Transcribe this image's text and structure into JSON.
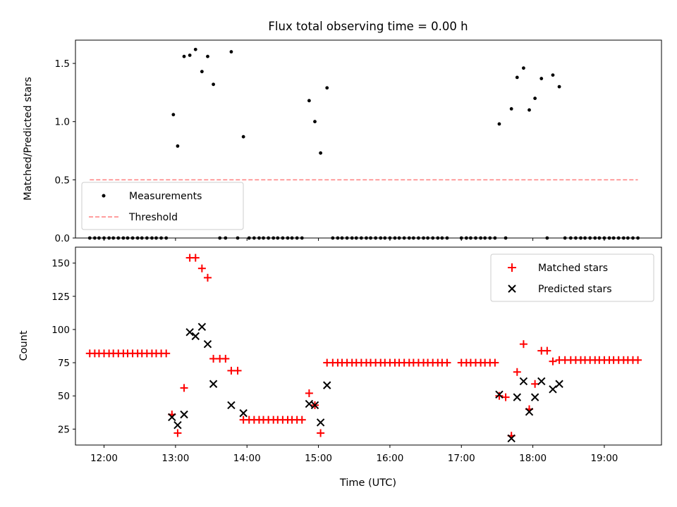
{
  "chart_data": [
    {
      "type": "scatter",
      "title": "Flux total observing time = 0.00 h",
      "ylabel": "Matched/Predicted stars",
      "xlabel": "",
      "xlim": [
        11.6,
        19.8
      ],
      "ylim": [
        0.0,
        1.7
      ],
      "yticks": [
        0.0,
        0.5,
        1.0,
        1.5
      ],
      "ytick_labels": [
        "0.0",
        "0.5",
        "1.0",
        "1.5"
      ],
      "legend_position": "bottom-left",
      "threshold": {
        "value": 0.5,
        "x_start": 11.8,
        "x_end": 19.47,
        "color": "#ff7f7f"
      },
      "series": [
        {
          "name": "Measurements",
          "marker": "dot",
          "color": "#000000",
          "points": [
            [
              11.8,
              0
            ],
            [
              11.87,
              0
            ],
            [
              11.93,
              0
            ],
            [
              12.0,
              0
            ],
            [
              12.07,
              0
            ],
            [
              12.13,
              0
            ],
            [
              12.2,
              0
            ],
            [
              12.27,
              0
            ],
            [
              12.33,
              0
            ],
            [
              12.4,
              0
            ],
            [
              12.47,
              0
            ],
            [
              12.53,
              0
            ],
            [
              12.6,
              0
            ],
            [
              12.67,
              0
            ],
            [
              12.73,
              0
            ],
            [
              12.8,
              0
            ],
            [
              12.87,
              0
            ],
            [
              12.97,
              1.06
            ],
            [
              13.03,
              0.79
            ],
            [
              13.12,
              1.56
            ],
            [
              13.2,
              1.57
            ],
            [
              13.28,
              1.62
            ],
            [
              13.37,
              1.43
            ],
            [
              13.45,
              1.56
            ],
            [
              13.53,
              1.32
            ],
            [
              13.62,
              0
            ],
            [
              13.7,
              0
            ],
            [
              13.78,
              1.6
            ],
            [
              13.87,
              0
            ],
            [
              13.95,
              0.87
            ],
            [
              14.03,
              0
            ],
            [
              14.1,
              0
            ],
            [
              14.17,
              0
            ],
            [
              14.23,
              0
            ],
            [
              14.3,
              0
            ],
            [
              14.37,
              0
            ],
            [
              14.43,
              0
            ],
            [
              14.5,
              0
            ],
            [
              14.57,
              0
            ],
            [
              14.63,
              0
            ],
            [
              14.7,
              0
            ],
            [
              14.77,
              0
            ],
            [
              14.87,
              1.18
            ],
            [
              14.95,
              1.0
            ],
            [
              15.03,
              0.73
            ],
            [
              15.12,
              1.29
            ],
            [
              15.2,
              0
            ],
            [
              15.27,
              0
            ],
            [
              15.33,
              0
            ],
            [
              15.4,
              0
            ],
            [
              15.47,
              0
            ],
            [
              15.53,
              0
            ],
            [
              15.6,
              0
            ],
            [
              15.67,
              0
            ],
            [
              15.73,
              0
            ],
            [
              15.8,
              0
            ],
            [
              15.87,
              0
            ],
            [
              15.93,
              0
            ],
            [
              16.0,
              0
            ],
            [
              16.07,
              0
            ],
            [
              16.13,
              0
            ],
            [
              16.2,
              0
            ],
            [
              16.27,
              0
            ],
            [
              16.33,
              0
            ],
            [
              16.4,
              0
            ],
            [
              16.47,
              0
            ],
            [
              16.53,
              0
            ],
            [
              16.6,
              0
            ],
            [
              16.67,
              0
            ],
            [
              16.73,
              0
            ],
            [
              16.8,
              0
            ],
            [
              17.0,
              0
            ],
            [
              17.07,
              0
            ],
            [
              17.13,
              0
            ],
            [
              17.2,
              0
            ],
            [
              17.27,
              0
            ],
            [
              17.33,
              0
            ],
            [
              17.4,
              0
            ],
            [
              17.47,
              0
            ],
            [
              17.53,
              0.98
            ],
            [
              17.62,
              0
            ],
            [
              17.7,
              1.11
            ],
            [
              17.78,
              1.38
            ],
            [
              17.87,
              1.46
            ],
            [
              17.95,
              1.1
            ],
            [
              18.03,
              1.2
            ],
            [
              18.12,
              1.37
            ],
            [
              18.2,
              0
            ],
            [
              18.28,
              1.4
            ],
            [
              18.37,
              1.3
            ],
            [
              18.45,
              0
            ],
            [
              18.53,
              0
            ],
            [
              18.6,
              0
            ],
            [
              18.67,
              0
            ],
            [
              18.73,
              0
            ],
            [
              18.8,
              0
            ],
            [
              18.87,
              0
            ],
            [
              18.93,
              0
            ],
            [
              19.0,
              0
            ],
            [
              19.07,
              0
            ],
            [
              19.13,
              0
            ],
            [
              19.2,
              0
            ],
            [
              19.27,
              0
            ],
            [
              19.33,
              0
            ],
            [
              19.4,
              0
            ],
            [
              19.47,
              0
            ]
          ]
        }
      ],
      "legend": [
        {
          "name": "Measurements",
          "marker": "dot",
          "color": "#000000"
        },
        {
          "name": "Threshold",
          "marker": "dashed-line",
          "color": "#ff7f7f"
        }
      ]
    },
    {
      "type": "scatter",
      "title": "",
      "ylabel": "Count",
      "xlabel": "Time (UTC)",
      "xlim": [
        11.6,
        19.8
      ],
      "ylim": [
        13,
        162
      ],
      "xticks": [
        12,
        13,
        14,
        15,
        16,
        17,
        18,
        19
      ],
      "xtick_labels": [
        "12:00",
        "13:00",
        "14:00",
        "15:00",
        "16:00",
        "17:00",
        "18:00",
        "19:00"
      ],
      "yticks": [
        25,
        50,
        75,
        100,
        125,
        150
      ],
      "ytick_labels": [
        "25",
        "50",
        "75",
        "100",
        "125",
        "150"
      ],
      "legend_position": "top-right",
      "series": [
        {
          "name": "Matched stars",
          "marker": "plus",
          "color": "#ff0000",
          "points": [
            [
              11.8,
              82
            ],
            [
              11.87,
              82
            ],
            [
              11.93,
              82
            ],
            [
              12.0,
              82
            ],
            [
              12.07,
              82
            ],
            [
              12.13,
              82
            ],
            [
              12.2,
              82
            ],
            [
              12.27,
              82
            ],
            [
              12.33,
              82
            ],
            [
              12.4,
              82
            ],
            [
              12.47,
              82
            ],
            [
              12.53,
              82
            ],
            [
              12.6,
              82
            ],
            [
              12.67,
              82
            ],
            [
              12.73,
              82
            ],
            [
              12.8,
              82
            ],
            [
              12.87,
              82
            ],
            [
              12.95,
              36
            ],
            [
              13.03,
              22
            ],
            [
              13.12,
              56
            ],
            [
              13.2,
              154
            ],
            [
              13.28,
              154
            ],
            [
              13.37,
              146
            ],
            [
              13.45,
              139
            ],
            [
              13.53,
              78
            ],
            [
              13.62,
              78
            ],
            [
              13.7,
              78
            ],
            [
              13.78,
              69
            ],
            [
              13.87,
              69
            ],
            [
              13.95,
              32
            ],
            [
              14.03,
              32
            ],
            [
              14.1,
              32
            ],
            [
              14.17,
              32
            ],
            [
              14.23,
              32
            ],
            [
              14.3,
              32
            ],
            [
              14.37,
              32
            ],
            [
              14.43,
              32
            ],
            [
              14.5,
              32
            ],
            [
              14.57,
              32
            ],
            [
              14.63,
              32
            ],
            [
              14.7,
              32
            ],
            [
              14.77,
              32
            ],
            [
              14.87,
              52
            ],
            [
              14.95,
              43
            ],
            [
              15.03,
              22
            ],
            [
              15.12,
              75
            ],
            [
              15.2,
              75
            ],
            [
              15.27,
              75
            ],
            [
              15.33,
              75
            ],
            [
              15.4,
              75
            ],
            [
              15.47,
              75
            ],
            [
              15.53,
              75
            ],
            [
              15.6,
              75
            ],
            [
              15.67,
              75
            ],
            [
              15.73,
              75
            ],
            [
              15.8,
              75
            ],
            [
              15.87,
              75
            ],
            [
              15.93,
              75
            ],
            [
              16.0,
              75
            ],
            [
              16.07,
              75
            ],
            [
              16.13,
              75
            ],
            [
              16.2,
              75
            ],
            [
              16.27,
              75
            ],
            [
              16.33,
              75
            ],
            [
              16.4,
              75
            ],
            [
              16.47,
              75
            ],
            [
              16.53,
              75
            ],
            [
              16.6,
              75
            ],
            [
              16.67,
              75
            ],
            [
              16.73,
              75
            ],
            [
              16.8,
              75
            ],
            [
              17.0,
              75
            ],
            [
              17.07,
              75
            ],
            [
              17.13,
              75
            ],
            [
              17.2,
              75
            ],
            [
              17.27,
              75
            ],
            [
              17.33,
              75
            ],
            [
              17.4,
              75
            ],
            [
              17.47,
              75
            ],
            [
              17.53,
              50
            ],
            [
              17.62,
              49
            ],
            [
              17.7,
              20
            ],
            [
              17.78,
              68
            ],
            [
              17.87,
              89
            ],
            [
              17.95,
              40
            ],
            [
              18.03,
              59
            ],
            [
              18.12,
              84
            ],
            [
              18.2,
              84
            ],
            [
              18.28,
              76
            ],
            [
              18.37,
              77
            ],
            [
              18.45,
              77
            ],
            [
              18.53,
              77
            ],
            [
              18.6,
              77
            ],
            [
              18.67,
              77
            ],
            [
              18.73,
              77
            ],
            [
              18.8,
              77
            ],
            [
              18.87,
              77
            ],
            [
              18.93,
              77
            ],
            [
              19.0,
              77
            ],
            [
              19.07,
              77
            ],
            [
              19.13,
              77
            ],
            [
              19.2,
              77
            ],
            [
              19.27,
              77
            ],
            [
              19.33,
              77
            ],
            [
              19.4,
              77
            ],
            [
              19.47,
              77
            ]
          ]
        },
        {
          "name": "Predicted stars",
          "marker": "x",
          "color": "#000000",
          "points": [
            [
              12.95,
              34
            ],
            [
              13.03,
              28
            ],
            [
              13.12,
              36
            ],
            [
              13.2,
              98
            ],
            [
              13.28,
              95
            ],
            [
              13.37,
              102
            ],
            [
              13.45,
              89
            ],
            [
              13.53,
              59
            ],
            [
              13.78,
              43
            ],
            [
              13.95,
              37
            ],
            [
              14.87,
              44
            ],
            [
              14.95,
              43
            ],
            [
              15.03,
              30
            ],
            [
              15.12,
              58
            ],
            [
              17.53,
              51
            ],
            [
              17.7,
              18
            ],
            [
              17.78,
              49
            ],
            [
              17.87,
              61
            ],
            [
              17.95,
              38
            ],
            [
              18.03,
              49
            ],
            [
              18.12,
              61
            ],
            [
              18.28,
              55
            ],
            [
              18.37,
              59
            ]
          ]
        }
      ],
      "legend": [
        {
          "name": "Matched stars",
          "marker": "plus",
          "color": "#ff0000"
        },
        {
          "name": "Predicted stars",
          "marker": "x",
          "color": "#000000"
        }
      ]
    }
  ]
}
